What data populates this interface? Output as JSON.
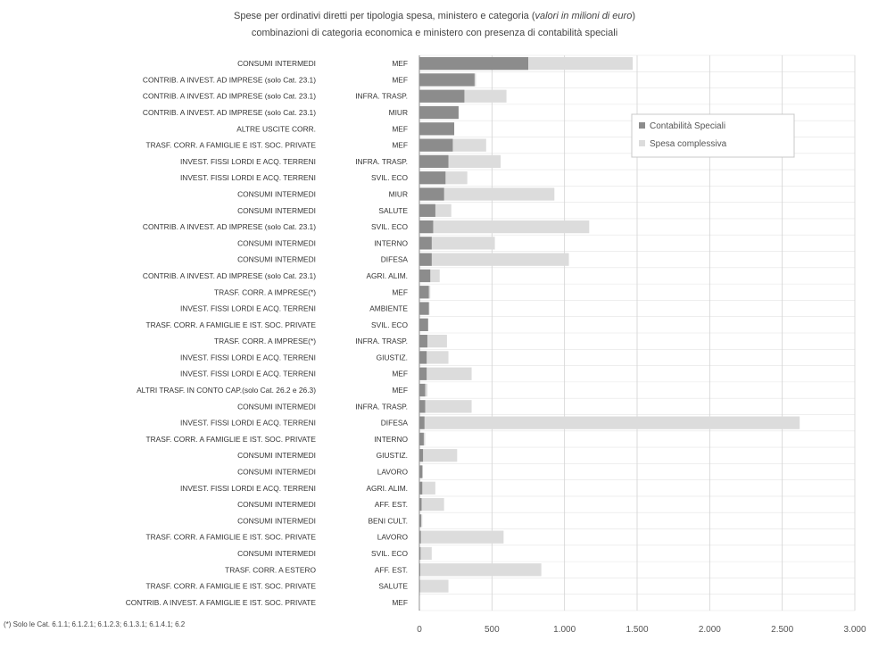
{
  "chart_data": {
    "type": "bar",
    "orientation": "horizontal",
    "title_line1_pre": "Spese per ordinativi diretti per tipologia spesa, ministero e categoria (",
    "title_line1_em": "valori  in milioni di euro",
    "title_line1_post": ")",
    "title_line2": "combinazioni di categoria economica e ministero con presenza di contabilità speciali",
    "xlim": [
      0,
      3000
    ],
    "xticks": [
      "0",
      "500",
      "1.000",
      "1.500",
      "2.000",
      "2.500",
      "3.000"
    ],
    "grid": true,
    "legend_position": "right",
    "colors": {
      "contabilita": "#8c8c8c",
      "complessiva": "#dcdcdc"
    },
    "series": [
      {
        "name": "Contabilità Speciali",
        "values": [
          750,
          380,
          310,
          270,
          240,
          230,
          200,
          180,
          170,
          110,
          95,
          85,
          85,
          75,
          65,
          65,
          60,
          55,
          50,
          50,
          40,
          40,
          35,
          30,
          25,
          20,
          20,
          15,
          12,
          10,
          8,
          6,
          4,
          2
        ]
      },
      {
        "name": "Spesa complessiva",
        "values": [
          1470,
          390,
          600,
          270,
          240,
          460,
          560,
          330,
          930,
          220,
          1170,
          520,
          1030,
          140,
          75,
          70,
          60,
          190,
          200,
          360,
          55,
          360,
          2620,
          40,
          260,
          25,
          110,
          170,
          20,
          580,
          85,
          840,
          200,
          2
        ]
      }
    ],
    "rows": [
      {
        "categoria": "CONSUMI INTERMEDI",
        "ministero": "MEF"
      },
      {
        "categoria": "CONTRIB. A INVEST. AD IMPRESE (solo Cat. 23.1)",
        "ministero": "MEF"
      },
      {
        "categoria": "CONTRIB. A INVEST. AD IMPRESE (solo Cat. 23.1)",
        "ministero": "INFRA. TRASP."
      },
      {
        "categoria": "CONTRIB. A INVEST. AD IMPRESE (solo Cat. 23.1)",
        "ministero": "MIUR"
      },
      {
        "categoria": "ALTRE USCITE CORR.",
        "ministero": "MEF"
      },
      {
        "categoria": "TRASF. CORR. A FAMIGLIE E IST. SOC. PRIVATE",
        "ministero": "MEF"
      },
      {
        "categoria": "INVEST. FISSI LORDI E ACQ. TERRENI",
        "ministero": "INFRA. TRASP."
      },
      {
        "categoria": "INVEST. FISSI LORDI E ACQ. TERRENI",
        "ministero": "SVIL. ECO"
      },
      {
        "categoria": "CONSUMI INTERMEDI",
        "ministero": "MIUR"
      },
      {
        "categoria": "CONSUMI INTERMEDI",
        "ministero": "SALUTE"
      },
      {
        "categoria": "CONTRIB. A INVEST. AD IMPRESE (solo Cat. 23.1)",
        "ministero": "SVIL. ECO"
      },
      {
        "categoria": "CONSUMI INTERMEDI",
        "ministero": "INTERNO"
      },
      {
        "categoria": "CONSUMI INTERMEDI",
        "ministero": "DIFESA"
      },
      {
        "categoria": "CONTRIB. A INVEST. AD IMPRESE (solo Cat. 23.1)",
        "ministero": "AGRI. ALIM."
      },
      {
        "categoria": "TRASF. CORR. A IMPRESE(*)",
        "ministero": "MEF"
      },
      {
        "categoria": "INVEST. FISSI LORDI E ACQ. TERRENI",
        "ministero": "AMBIENTE"
      },
      {
        "categoria": "TRASF. CORR. A FAMIGLIE E IST. SOC. PRIVATE",
        "ministero": "SVIL. ECO"
      },
      {
        "categoria": "TRASF. CORR. A IMPRESE(*)",
        "ministero": "INFRA. TRASP."
      },
      {
        "categoria": "INVEST. FISSI LORDI E ACQ. TERRENI",
        "ministero": "GIUSTIZ."
      },
      {
        "categoria": "INVEST. FISSI LORDI E ACQ. TERRENI",
        "ministero": "MEF"
      },
      {
        "categoria": "ALTRI TRASF. IN CONTO CAP.(solo Cat. 26.2 e 26.3)",
        "ministero": "MEF"
      },
      {
        "categoria": "CONSUMI INTERMEDI",
        "ministero": "INFRA. TRASP."
      },
      {
        "categoria": "INVEST. FISSI LORDI E ACQ. TERRENI",
        "ministero": "DIFESA"
      },
      {
        "categoria": "TRASF. CORR. A FAMIGLIE E IST. SOC. PRIVATE",
        "ministero": "INTERNO"
      },
      {
        "categoria": "CONSUMI INTERMEDI",
        "ministero": "GIUSTIZ."
      },
      {
        "categoria": "CONSUMI INTERMEDI",
        "ministero": "LAVORO"
      },
      {
        "categoria": "INVEST. FISSI LORDI E ACQ. TERRENI",
        "ministero": "AGRI. ALIM."
      },
      {
        "categoria": "CONSUMI INTERMEDI",
        "ministero": "AFF. EST."
      },
      {
        "categoria": "CONSUMI INTERMEDI",
        "ministero": "BENI CULT."
      },
      {
        "categoria": "TRASF. CORR. A FAMIGLIE E IST. SOC. PRIVATE",
        "ministero": "LAVORO"
      },
      {
        "categoria": "CONSUMI INTERMEDI",
        "ministero": "SVIL. ECO"
      },
      {
        "categoria": "TRASF. CORR. A ESTERO",
        "ministero": "AFF. EST."
      },
      {
        "categoria": "TRASF. CORR. A FAMIGLIE E IST. SOC. PRIVATE",
        "ministero": "SALUTE"
      },
      {
        "categoria": "CONTRIB. A INVEST. A FAMIGLIE E IST. SOC. PRIVATE",
        "ministero": "MEF"
      }
    ],
    "footnote": "(*) Solo le Cat. 6.1.1; 6.1.2.1; 6.1.2.3; 6.1.3.1; 6.1.4.1; 6.2"
  }
}
